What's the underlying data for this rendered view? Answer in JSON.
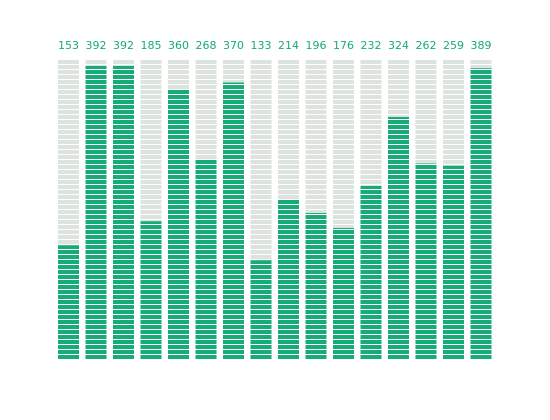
{
  "chart_data": {
    "type": "bar",
    "values": [
      153,
      392,
      392,
      185,
      360,
      268,
      370,
      133,
      214,
      196,
      176,
      232,
      324,
      262,
      259,
      389
    ],
    "color": "#17ab78",
    "track_color": "#dde3dd",
    "label_color": "#17ab78",
    "ylim": [
      0,
      400
    ]
  }
}
